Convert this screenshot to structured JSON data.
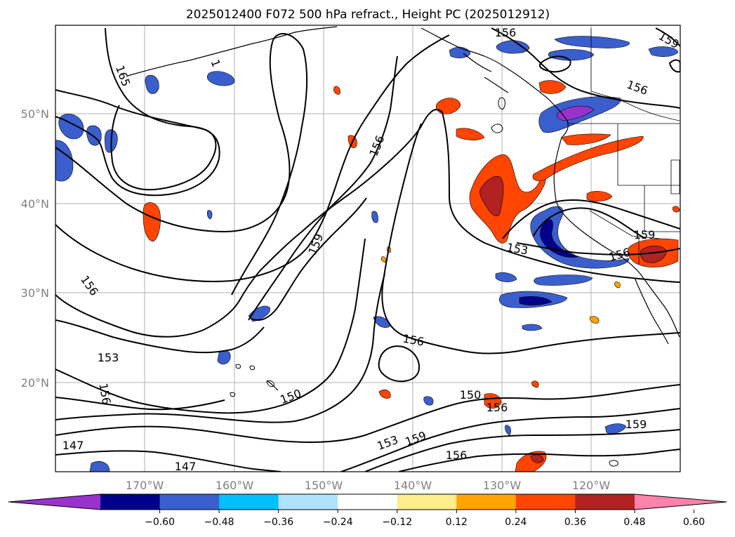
{
  "chart_data": {
    "type": "map",
    "title": "2025012400 F072 500 hPa refract., Height PC (2025012912)",
    "lon_ticks": [
      "170°W",
      "160°W",
      "150°W",
      "140°W",
      "130°W",
      "120°W"
    ],
    "lat_ticks": [
      "50°N",
      "40°N",
      "30°N",
      "20°N"
    ],
    "contour_labels": [
      "165",
      "1",
      "156",
      "156",
      "156",
      "159",
      "156",
      "159",
      "153",
      "159",
      "156",
      "156",
      "153",
      "156",
      "150",
      "150",
      "156",
      "153",
      "159",
      "156",
      "147",
      "147"
    ],
    "colorbar": {
      "ticks": [
        "−0.60",
        "−0.48",
        "−0.36",
        "−0.24",
        "−0.12",
        "0.12",
        "0.24",
        "0.36",
        "0.48",
        "0.60"
      ],
      "colors": [
        "#9932cc",
        "#00008b",
        "#3a5fcd",
        "#00bfff",
        "#b0e2ff",
        "#ffffff",
        "#ffec8b",
        "#ffa500",
        "#ff4500",
        "#b22222",
        "#ff82ab"
      ]
    }
  }
}
